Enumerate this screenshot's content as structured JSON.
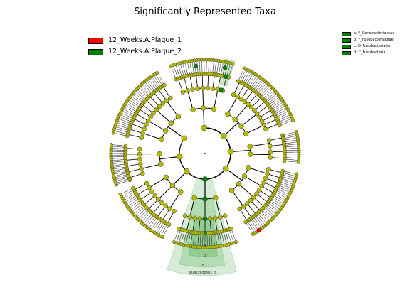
{
  "title": "Significantly Represented Taxa",
  "legend": [
    {
      "label": "12_Weeks.A.Plaque_1",
      "color": "#ff0000"
    },
    {
      "label": "12_Weeks.A.Plaque_2",
      "color": "#008000"
    }
  ],
  "clade_legend": [
    {
      "label": "a: F_Coriobacteriaceae",
      "color": "#008000"
    },
    {
      "label": "b: F_Fusobacteriaceae",
      "color": "#008000"
    },
    {
      "label": "c: O_Fusobacteriales",
      "color": "#008000"
    },
    {
      "label": "d: C_Fusobacteria",
      "color": "#008000"
    }
  ],
  "clade_labels": {
    "a": "a",
    "b": "b",
    "c": "c",
    "d": "d",
    "outer": "d: Fusobacteria"
  },
  "colors": {
    "node_default": "#b5b800",
    "node_plaque1": "#ff0000",
    "node_plaque2": "#008000",
    "shade_plaque2": "#4aaa4a"
  }
}
